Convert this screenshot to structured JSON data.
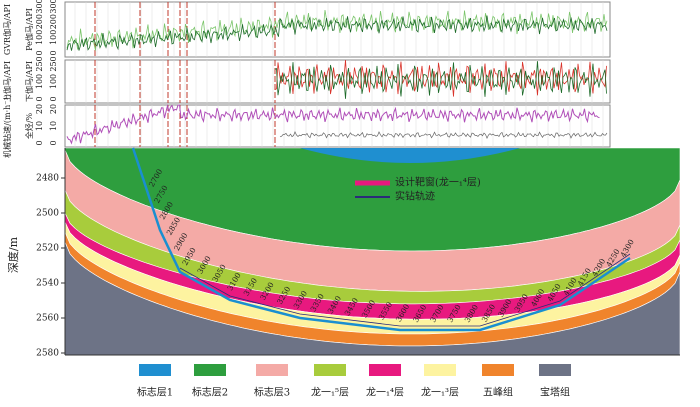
{
  "logs": {
    "track1": {
      "labels": [
        "GVR伽马/API",
        "Pe伽马/API"
      ],
      "scale_a": [
        "0",
        "100",
        "200",
        "300"
      ],
      "scale_b": [
        "0",
        "100",
        "200",
        "300"
      ]
    },
    "track2": {
      "labels": [
        "上伽马/API",
        "下伽马/API"
      ],
      "scale_a": [
        "0",
        "100",
        "250"
      ],
      "scale_b": [
        "0",
        "100",
        "250"
      ]
    },
    "track3": {
      "labels": [
        "机械钻速/(m·h⁻¹)",
        "全烃/%"
      ],
      "scale_a": [
        "0",
        "10",
        "20"
      ],
      "scale_b": [
        "0",
        "10",
        "20"
      ]
    }
  },
  "section": {
    "axis_label": "深度/m",
    "depth_ticks": [
      "2480",
      "2500",
      "2520",
      "2540",
      "2560",
      "2580"
    ],
    "legend": [
      "设计靶窗(龙一₁⁴层)",
      "实钻轨迹"
    ],
    "well_depths": [
      "2700",
      "2750",
      "2800",
      "2850",
      "2900",
      "2950",
      "3000",
      "3050",
      "3100",
      "3150",
      "3200",
      "3250",
      "3300",
      "3350",
      "3400",
      "3450",
      "3500",
      "3550",
      "3600",
      "3650",
      "3700",
      "3750",
      "3800",
      "3850",
      "3900",
      "3950",
      "4000",
      "4050",
      "4100",
      "4150",
      "4200",
      "4250",
      "4300"
    ]
  },
  "legend": [
    {
      "name": "标志层1",
      "color": "#1f8fd0"
    },
    {
      "name": "标志层2",
      "color": "#2e9e3e"
    },
    {
      "name": "标志层3",
      "color": "#f4aaa6"
    },
    {
      "name": "龙一₁⁵层",
      "color": "#a8cc3c"
    },
    {
      "name": "龙一₁⁴层",
      "color": "#e8197f"
    },
    {
      "name": "龙一₁³层",
      "color": "#fdf3a0"
    },
    {
      "name": "五峰组",
      "color": "#f0842c"
    },
    {
      "name": "宝塔组",
      "color": "#6d7386"
    }
  ]
}
